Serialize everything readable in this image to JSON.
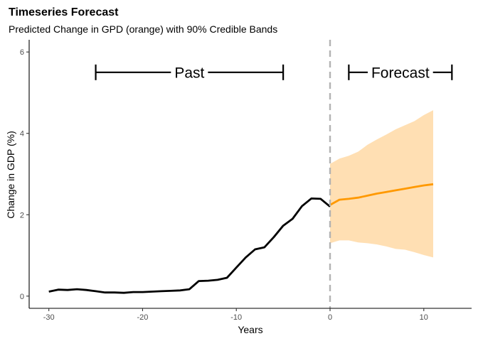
{
  "chart_data": {
    "type": "line",
    "title": "Timeseries Forecast",
    "subtitle": "Predicted Change in GPD (orange) with 90% Credible Bands",
    "xlabel": "Years",
    "ylabel": "Change in GDP (%)",
    "xlim": [
      -32.1,
      15.1
    ],
    "ylim": [
      -0.3,
      6.3
    ],
    "x_ticks": [
      -30,
      -20,
      -10,
      0,
      10
    ],
    "x_tick_labels": [
      "-30",
      "-20",
      "-10",
      "0",
      "10"
    ],
    "y_ticks": [
      0,
      2,
      4,
      6
    ],
    "y_tick_labels": [
      "0",
      "2",
      "4",
      "6"
    ],
    "grid": false,
    "vline": {
      "x": 0,
      "style": "dashed",
      "color": "#b3b3b3"
    },
    "colors": {
      "past": "#000000",
      "forecast": "#ff9900",
      "band": "#ffdfb3"
    },
    "series": [
      {
        "role": "past",
        "x": [
          -30,
          -29,
          -28,
          -27,
          -26,
          -25,
          -24,
          -23,
          -22,
          -21,
          -20,
          -19,
          -18,
          -17,
          -16,
          -15,
          -14,
          -13,
          -12,
          -11,
          -10,
          -9,
          -8,
          -7,
          -6,
          -5,
          -4,
          -3,
          -2,
          -1,
          0
        ],
        "y": [
          0.11,
          0.16,
          0.15,
          0.17,
          0.15,
          0.12,
          0.09,
          0.09,
          0.08,
          0.1,
          0.1,
          0.11,
          0.12,
          0.13,
          0.14,
          0.17,
          0.37,
          0.38,
          0.4,
          0.45,
          0.7,
          0.95,
          1.15,
          1.2,
          1.45,
          1.73,
          1.9,
          2.21,
          2.4,
          2.39,
          2.2
        ]
      },
      {
        "role": "forecast",
        "x": [
          0,
          1,
          2,
          3,
          4,
          5,
          6,
          7,
          8,
          9,
          10,
          11
        ],
        "y": [
          2.24,
          2.37,
          2.39,
          2.42,
          2.47,
          2.52,
          2.56,
          2.6,
          2.64,
          2.68,
          2.72,
          2.75
        ]
      }
    ],
    "band": {
      "x": [
        0,
        1,
        2,
        3,
        4,
        5,
        6,
        7,
        8,
        9,
        10,
        11
      ],
      "lower": [
        1.3,
        1.37,
        1.37,
        1.32,
        1.3,
        1.27,
        1.22,
        1.16,
        1.14,
        1.08,
        1.01,
        0.95
      ],
      "upper": [
        3.25,
        3.38,
        3.45,
        3.55,
        3.72,
        3.85,
        3.97,
        4.1,
        4.2,
        4.3,
        4.45,
        4.57
      ]
    },
    "annotations": [
      {
        "label": "Past",
        "x_start": -25,
        "x_end": -5,
        "y": 5.5
      },
      {
        "label": "Forecast",
        "x_start": 2,
        "x_end": 13,
        "y": 5.5
      }
    ]
  }
}
